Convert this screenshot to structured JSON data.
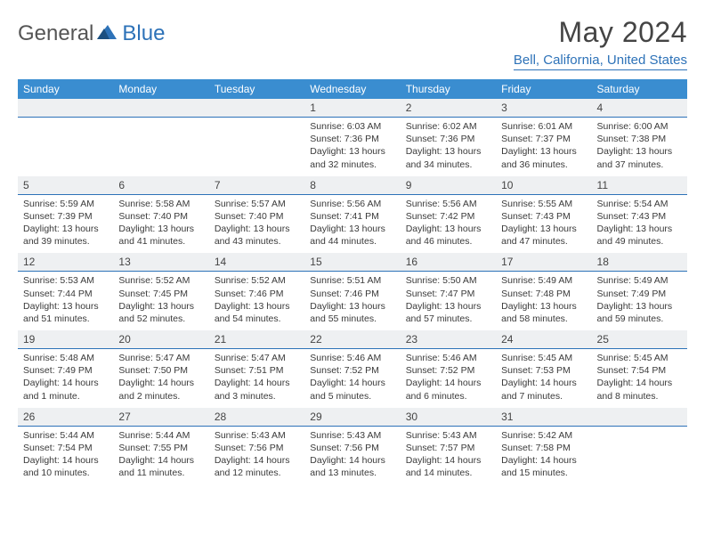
{
  "brand": {
    "part1": "General",
    "part2": "Blue"
  },
  "title": "May 2024",
  "location": "Bell, California, United States",
  "day_headers": [
    "Sunday",
    "Monday",
    "Tuesday",
    "Wednesday",
    "Thursday",
    "Friday",
    "Saturday"
  ],
  "colors": {
    "header_bg": "#3a8dd0",
    "accent": "#2d72b8",
    "daynum_bg": "#eef0f2",
    "text": "#3a3a3a"
  },
  "weeks": [
    [
      {
        "n": "",
        "sunrise": "",
        "sunset": "",
        "daylight": ""
      },
      {
        "n": "",
        "sunrise": "",
        "sunset": "",
        "daylight": ""
      },
      {
        "n": "",
        "sunrise": "",
        "sunset": "",
        "daylight": ""
      },
      {
        "n": "1",
        "sunrise": "Sunrise: 6:03 AM",
        "sunset": "Sunset: 7:36 PM",
        "daylight": "Daylight: 13 hours and 32 minutes."
      },
      {
        "n": "2",
        "sunrise": "Sunrise: 6:02 AM",
        "sunset": "Sunset: 7:36 PM",
        "daylight": "Daylight: 13 hours and 34 minutes."
      },
      {
        "n": "3",
        "sunrise": "Sunrise: 6:01 AM",
        "sunset": "Sunset: 7:37 PM",
        "daylight": "Daylight: 13 hours and 36 minutes."
      },
      {
        "n": "4",
        "sunrise": "Sunrise: 6:00 AM",
        "sunset": "Sunset: 7:38 PM",
        "daylight": "Daylight: 13 hours and 37 minutes."
      }
    ],
    [
      {
        "n": "5",
        "sunrise": "Sunrise: 5:59 AM",
        "sunset": "Sunset: 7:39 PM",
        "daylight": "Daylight: 13 hours and 39 minutes."
      },
      {
        "n": "6",
        "sunrise": "Sunrise: 5:58 AM",
        "sunset": "Sunset: 7:40 PM",
        "daylight": "Daylight: 13 hours and 41 minutes."
      },
      {
        "n": "7",
        "sunrise": "Sunrise: 5:57 AM",
        "sunset": "Sunset: 7:40 PM",
        "daylight": "Daylight: 13 hours and 43 minutes."
      },
      {
        "n": "8",
        "sunrise": "Sunrise: 5:56 AM",
        "sunset": "Sunset: 7:41 PM",
        "daylight": "Daylight: 13 hours and 44 minutes."
      },
      {
        "n": "9",
        "sunrise": "Sunrise: 5:56 AM",
        "sunset": "Sunset: 7:42 PM",
        "daylight": "Daylight: 13 hours and 46 minutes."
      },
      {
        "n": "10",
        "sunrise": "Sunrise: 5:55 AM",
        "sunset": "Sunset: 7:43 PM",
        "daylight": "Daylight: 13 hours and 47 minutes."
      },
      {
        "n": "11",
        "sunrise": "Sunrise: 5:54 AM",
        "sunset": "Sunset: 7:43 PM",
        "daylight": "Daylight: 13 hours and 49 minutes."
      }
    ],
    [
      {
        "n": "12",
        "sunrise": "Sunrise: 5:53 AM",
        "sunset": "Sunset: 7:44 PM",
        "daylight": "Daylight: 13 hours and 51 minutes."
      },
      {
        "n": "13",
        "sunrise": "Sunrise: 5:52 AM",
        "sunset": "Sunset: 7:45 PM",
        "daylight": "Daylight: 13 hours and 52 minutes."
      },
      {
        "n": "14",
        "sunrise": "Sunrise: 5:52 AM",
        "sunset": "Sunset: 7:46 PM",
        "daylight": "Daylight: 13 hours and 54 minutes."
      },
      {
        "n": "15",
        "sunrise": "Sunrise: 5:51 AM",
        "sunset": "Sunset: 7:46 PM",
        "daylight": "Daylight: 13 hours and 55 minutes."
      },
      {
        "n": "16",
        "sunrise": "Sunrise: 5:50 AM",
        "sunset": "Sunset: 7:47 PM",
        "daylight": "Daylight: 13 hours and 57 minutes."
      },
      {
        "n": "17",
        "sunrise": "Sunrise: 5:49 AM",
        "sunset": "Sunset: 7:48 PM",
        "daylight": "Daylight: 13 hours and 58 minutes."
      },
      {
        "n": "18",
        "sunrise": "Sunrise: 5:49 AM",
        "sunset": "Sunset: 7:49 PM",
        "daylight": "Daylight: 13 hours and 59 minutes."
      }
    ],
    [
      {
        "n": "19",
        "sunrise": "Sunrise: 5:48 AM",
        "sunset": "Sunset: 7:49 PM",
        "daylight": "Daylight: 14 hours and 1 minute."
      },
      {
        "n": "20",
        "sunrise": "Sunrise: 5:47 AM",
        "sunset": "Sunset: 7:50 PM",
        "daylight": "Daylight: 14 hours and 2 minutes."
      },
      {
        "n": "21",
        "sunrise": "Sunrise: 5:47 AM",
        "sunset": "Sunset: 7:51 PM",
        "daylight": "Daylight: 14 hours and 3 minutes."
      },
      {
        "n": "22",
        "sunrise": "Sunrise: 5:46 AM",
        "sunset": "Sunset: 7:52 PM",
        "daylight": "Daylight: 14 hours and 5 minutes."
      },
      {
        "n": "23",
        "sunrise": "Sunrise: 5:46 AM",
        "sunset": "Sunset: 7:52 PM",
        "daylight": "Daylight: 14 hours and 6 minutes."
      },
      {
        "n": "24",
        "sunrise": "Sunrise: 5:45 AM",
        "sunset": "Sunset: 7:53 PM",
        "daylight": "Daylight: 14 hours and 7 minutes."
      },
      {
        "n": "25",
        "sunrise": "Sunrise: 5:45 AM",
        "sunset": "Sunset: 7:54 PM",
        "daylight": "Daylight: 14 hours and 8 minutes."
      }
    ],
    [
      {
        "n": "26",
        "sunrise": "Sunrise: 5:44 AM",
        "sunset": "Sunset: 7:54 PM",
        "daylight": "Daylight: 14 hours and 10 minutes."
      },
      {
        "n": "27",
        "sunrise": "Sunrise: 5:44 AM",
        "sunset": "Sunset: 7:55 PM",
        "daylight": "Daylight: 14 hours and 11 minutes."
      },
      {
        "n": "28",
        "sunrise": "Sunrise: 5:43 AM",
        "sunset": "Sunset: 7:56 PM",
        "daylight": "Daylight: 14 hours and 12 minutes."
      },
      {
        "n": "29",
        "sunrise": "Sunrise: 5:43 AM",
        "sunset": "Sunset: 7:56 PM",
        "daylight": "Daylight: 14 hours and 13 minutes."
      },
      {
        "n": "30",
        "sunrise": "Sunrise: 5:43 AM",
        "sunset": "Sunset: 7:57 PM",
        "daylight": "Daylight: 14 hours and 14 minutes."
      },
      {
        "n": "31",
        "sunrise": "Sunrise: 5:42 AM",
        "sunset": "Sunset: 7:58 PM",
        "daylight": "Daylight: 14 hours and 15 minutes."
      },
      {
        "n": "",
        "sunrise": "",
        "sunset": "",
        "daylight": ""
      }
    ]
  ]
}
